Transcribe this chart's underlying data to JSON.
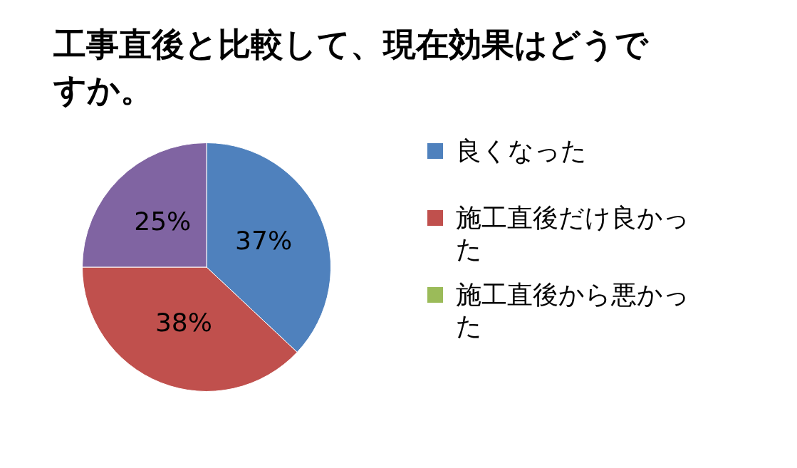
{
  "chart_data": {
    "type": "pie",
    "title": "工事直後と比較して、現在効果はどうですか。",
    "categories": [
      "良くなった",
      "施工直後だけ良かった",
      "施工直後から悪かった",
      null
    ],
    "values": [
      37,
      38,
      0,
      25
    ],
    "colors": [
      "#4f81bd",
      "#c0504d",
      "#9bbb59",
      "#8064a2"
    ],
    "value_labels": [
      "37%",
      "38%",
      null,
      "25%"
    ],
    "legend": "right"
  }
}
